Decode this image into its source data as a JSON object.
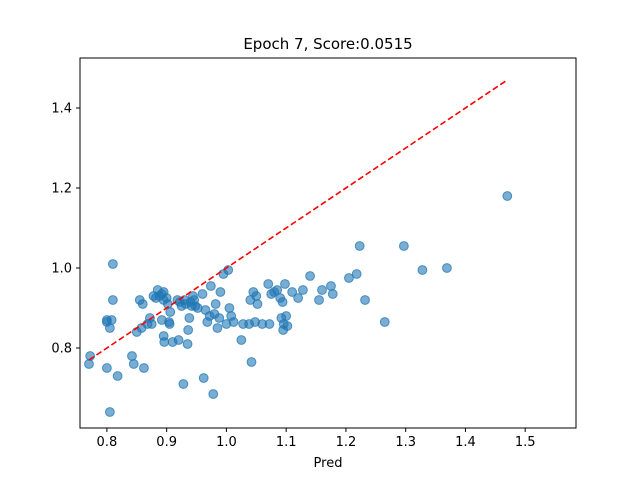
{
  "chart_data": {
    "type": "scatter",
    "title": "Epoch 7, Score:0.0515",
    "xlabel": "Pred",
    "ylabel": "",
    "xlim": [
      0.755,
      1.585
    ],
    "ylim": [
      0.6,
      1.525
    ],
    "xticks": [
      0.8,
      0.9,
      1.0,
      1.1,
      1.2,
      1.3,
      1.4,
      1.5
    ],
    "yticks": [
      0.8,
      1.0,
      1.2,
      1.4
    ],
    "xtick_labels": [
      "0.8",
      "0.9",
      "1.0",
      "1.1",
      "1.2",
      "1.3",
      "1.4",
      "1.5"
    ],
    "ytick_labels": [
      "0.8",
      "1.0",
      "1.2",
      "1.4"
    ],
    "grid": false,
    "colors": {
      "points": "#1f77b4",
      "reference_line": "#ff0000"
    },
    "reference_line": {
      "style": "dashed",
      "from": [
        0.77,
        0.77
      ],
      "to": [
        1.47,
        1.47
      ]
    },
    "series": [
      {
        "points": [
          [
            0.77,
            0.76
          ],
          [
            0.772,
            0.78
          ],
          [
            0.8,
            0.75
          ],
          [
            0.8,
            0.87
          ],
          [
            0.805,
            0.85
          ],
          [
            0.8,
            0.865
          ],
          [
            0.808,
            0.87
          ],
          [
            0.805,
            0.64
          ],
          [
            0.81,
            0.92
          ],
          [
            0.81,
            1.01
          ],
          [
            0.818,
            0.73
          ],
          [
            0.842,
            0.78
          ],
          [
            0.845,
            0.76
          ],
          [
            0.85,
            0.84
          ],
          [
            0.855,
            0.92
          ],
          [
            0.858,
            0.85
          ],
          [
            0.86,
            0.91
          ],
          [
            0.862,
            0.75
          ],
          [
            0.868,
            0.86
          ],
          [
            0.872,
            0.875
          ],
          [
            0.875,
            0.86
          ],
          [
            0.878,
            0.93
          ],
          [
            0.882,
            0.925
          ],
          [
            0.885,
            0.945
          ],
          [
            0.888,
            0.93
          ],
          [
            0.892,
            0.935
          ],
          [
            0.895,
            0.92
          ],
          [
            0.895,
            0.94
          ],
          [
            0.892,
            0.87
          ],
          [
            0.895,
            0.83
          ],
          [
            0.896,
            0.815
          ],
          [
            0.9,
            0.925
          ],
          [
            0.902,
            0.91
          ],
          [
            0.904,
            0.865
          ],
          [
            0.905,
            0.86
          ],
          [
            0.906,
            0.89
          ],
          [
            0.91,
            0.815
          ],
          [
            0.918,
            0.92
          ],
          [
            0.92,
            0.82
          ],
          [
            0.922,
            0.915
          ],
          [
            0.925,
            0.905
          ],
          [
            0.928,
            0.71
          ],
          [
            0.93,
            0.92
          ],
          [
            0.932,
            0.91
          ],
          [
            0.935,
            0.81
          ],
          [
            0.936,
            0.845
          ],
          [
            0.938,
            0.875
          ],
          [
            0.94,
            0.915
          ],
          [
            0.942,
            0.905
          ],
          [
            0.944,
            0.93
          ],
          [
            0.946,
            0.92
          ],
          [
            0.948,
            0.905
          ],
          [
            0.952,
            0.9
          ],
          [
            0.96,
            0.935
          ],
          [
            0.962,
            0.725
          ],
          [
            0.965,
            0.895
          ],
          [
            0.968,
            0.865
          ],
          [
            0.972,
            0.88
          ],
          [
            0.974,
            0.955
          ],
          [
            0.978,
            0.685
          ],
          [
            0.98,
            0.885
          ],
          [
            0.982,
            0.91
          ],
          [
            0.985,
            0.85
          ],
          [
            0.988,
            0.875
          ],
          [
            0.99,
            0.94
          ],
          [
            0.995,
            0.985
          ],
          [
            1.0,
            0.86
          ],
          [
            1.003,
            0.995
          ],
          [
            1.005,
            0.9
          ],
          [
            1.008,
            0.88
          ],
          [
            1.012,
            0.865
          ],
          [
            1.025,
            0.82
          ],
          [
            1.028,
            0.86
          ],
          [
            1.038,
            0.86
          ],
          [
            1.04,
            0.92
          ],
          [
            1.042,
            0.765
          ],
          [
            1.045,
            0.94
          ],
          [
            1.048,
            0.865
          ],
          [
            1.05,
            0.93
          ],
          [
            1.052,
            0.91
          ],
          [
            1.06,
            0.86
          ],
          [
            1.07,
            0.96
          ],
          [
            1.072,
            0.86
          ],
          [
            1.075,
            0.935
          ],
          [
            1.08,
            0.94
          ],
          [
            1.085,
            0.945
          ],
          [
            1.09,
            0.925
          ],
          [
            1.092,
            0.875
          ],
          [
            1.094,
            0.915
          ],
          [
            1.095,
            0.845
          ],
          [
            1.096,
            0.86
          ],
          [
            1.098,
            0.96
          ],
          [
            1.1,
            0.88
          ],
          [
            1.102,
            0.855
          ],
          [
            1.11,
            0.94
          ],
          [
            1.12,
            0.925
          ],
          [
            1.128,
            0.945
          ],
          [
            1.14,
            0.98
          ],
          [
            1.155,
            0.92
          ],
          [
            1.16,
            0.945
          ],
          [
            1.175,
            0.955
          ],
          [
            1.178,
            0.935
          ],
          [
            1.205,
            0.975
          ],
          [
            1.218,
            0.985
          ],
          [
            1.223,
            1.055
          ],
          [
            1.232,
            0.92
          ],
          [
            1.265,
            0.865
          ],
          [
            1.297,
            1.055
          ],
          [
            1.328,
            0.995
          ],
          [
            1.369,
            1.0
          ],
          [
            1.47,
            1.18
          ]
        ]
      }
    ]
  }
}
